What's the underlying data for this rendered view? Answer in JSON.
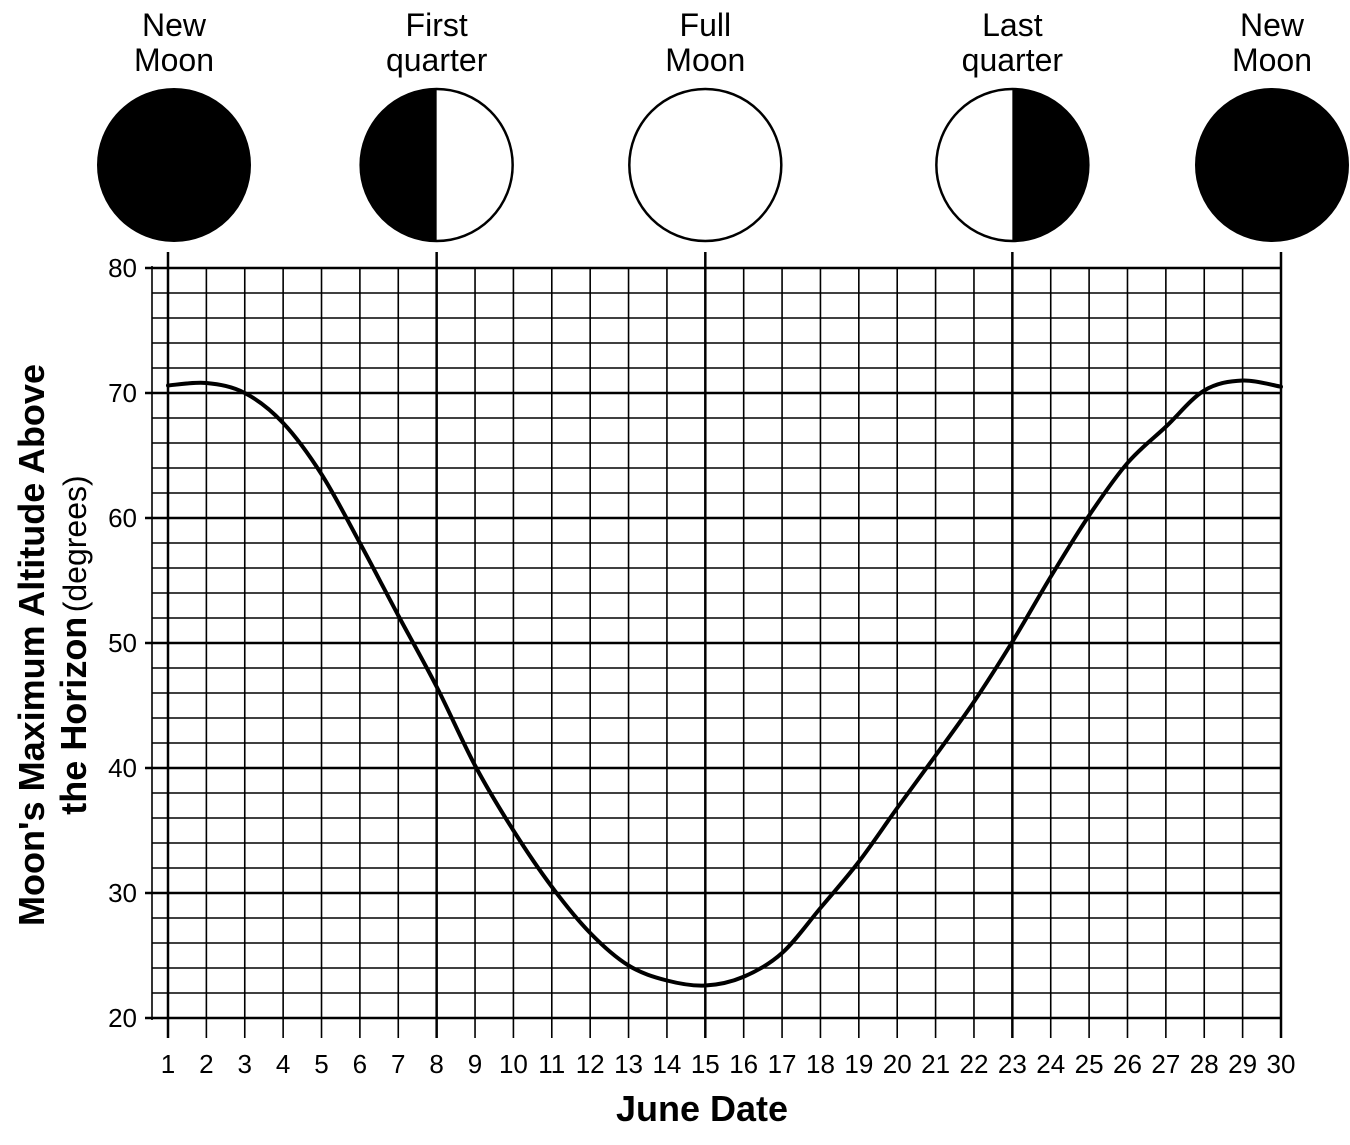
{
  "chart_data": {
    "type": "line",
    "xlabel": "June Date",
    "ylabel": {
      "line1": "Moon's Maximum Altitude Above",
      "line2_bold": "the Horizon",
      "line2_unit": "(degrees)"
    },
    "xlim": [
      1,
      30
    ],
    "ylim": [
      20,
      80
    ],
    "x_ticks": [
      1,
      2,
      3,
      4,
      5,
      6,
      7,
      8,
      9,
      10,
      11,
      12,
      13,
      14,
      15,
      16,
      17,
      18,
      19,
      20,
      21,
      22,
      23,
      24,
      25,
      26,
      27,
      28,
      29,
      30
    ],
    "y_ticks": [
      20,
      30,
      40,
      50,
      60,
      70,
      80
    ],
    "grid": true,
    "x_minor_step": 1,
    "y_minor_step": 2,
    "phase_marker_dates": [
      1,
      8,
      15,
      23,
      30
    ],
    "series": [
      {
        "x": [
          1,
          2,
          3,
          4,
          5,
          6,
          7,
          8,
          9,
          10,
          11,
          12,
          13,
          14,
          15,
          16,
          17,
          18,
          19,
          20,
          21,
          22,
          23,
          24,
          25,
          26,
          27,
          28,
          29,
          30
        ],
        "y": [
          70.6,
          70.8,
          70.0,
          67.6,
          63.5,
          58.0,
          52.2,
          46.5,
          40.2,
          35.0,
          30.5,
          26.8,
          24.2,
          23.0,
          22.6,
          23.3,
          25.2,
          28.8,
          32.5,
          36.8,
          41.0,
          45.3,
          50.1,
          55.3,
          60.2,
          64.4,
          67.3,
          70.2,
          71.0,
          70.5
        ]
      }
    ]
  },
  "moon_phases": [
    {
      "name": "new-moon",
      "label_line1": "New",
      "label_line2": "Moon",
      "date": 1,
      "dark_side": "full"
    },
    {
      "name": "first-quarter",
      "label_line1": "First",
      "label_line2": "quarter",
      "date": 8,
      "dark_side": "left"
    },
    {
      "name": "full-moon",
      "label_line1": "Full",
      "label_line2": "Moon",
      "date": 15,
      "dark_side": "none"
    },
    {
      "name": "last-quarter",
      "label_line1": "Last",
      "label_line2": "quarter",
      "date": 23,
      "dark_side": "right"
    },
    {
      "name": "new-moon-end",
      "label_line1": "New",
      "label_line2": "Moon",
      "date": 30,
      "dark_side": "full"
    }
  ]
}
